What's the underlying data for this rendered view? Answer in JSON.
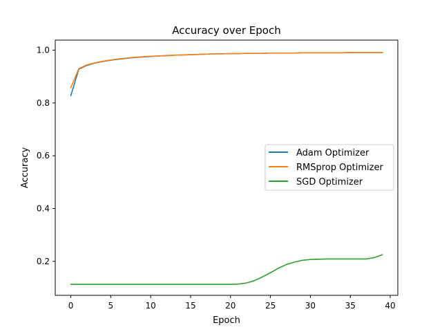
{
  "chart_data": {
    "type": "line",
    "title": "Accuracy over Epoch",
    "xlabel": "Epoch",
    "ylabel": "Accuracy",
    "xlim": [
      -1.95,
      40.95
    ],
    "ylim": [
      0.0712,
      1.0381
    ],
    "xticks": [
      0,
      5,
      10,
      15,
      20,
      25,
      30,
      35,
      40
    ],
    "yticks": [
      0.2,
      0.4,
      0.6,
      0.8,
      1.0
    ],
    "xtick_labels": [
      "0",
      "5",
      "10",
      "15",
      "20",
      "25",
      "30",
      "35",
      "40"
    ],
    "ytick_labels": [
      "0.2",
      "0.4",
      "0.6",
      "0.8",
      "1.0"
    ],
    "grid": false,
    "legend_position": "center-right",
    "x": [
      0,
      1,
      2,
      3,
      4,
      5,
      6,
      7,
      8,
      9,
      10,
      11,
      12,
      13,
      14,
      15,
      16,
      17,
      18,
      19,
      20,
      21,
      22,
      23,
      24,
      25,
      26,
      27,
      28,
      29,
      30,
      31,
      32,
      33,
      34,
      35,
      36,
      37,
      38,
      39
    ],
    "series": [
      {
        "name": "Adam Optimizer",
        "color": "#1f77b4",
        "values": [
          0.828,
          0.928,
          0.942,
          0.951,
          0.957,
          0.962,
          0.966,
          0.969,
          0.972,
          0.974,
          0.976,
          0.978,
          0.979,
          0.981,
          0.982,
          0.983,
          0.984,
          0.985,
          0.986,
          0.986,
          0.987,
          0.987,
          0.988,
          0.988,
          0.988,
          0.989,
          0.989,
          0.989,
          0.989,
          0.99,
          0.99,
          0.99,
          0.99,
          0.99,
          0.99,
          0.991,
          0.991,
          0.991,
          0.991,
          0.991
        ]
      },
      {
        "name": "RMSprop Optimizer",
        "color": "#ff7f0e",
        "values": [
          0.858,
          0.93,
          0.944,
          0.952,
          0.958,
          0.963,
          0.967,
          0.97,
          0.973,
          0.975,
          0.977,
          0.978,
          0.98,
          0.981,
          0.982,
          0.983,
          0.984,
          0.985,
          0.986,
          0.986,
          0.987,
          0.987,
          0.988,
          0.988,
          0.988,
          0.989,
          0.989,
          0.989,
          0.989,
          0.99,
          0.99,
          0.99,
          0.99,
          0.99,
          0.99,
          0.991,
          0.991,
          0.991,
          0.991,
          0.991
        ]
      },
      {
        "name": "SGD Optimizer",
        "color": "#2ca02c",
        "values": [
          0.113,
          0.113,
          0.113,
          0.113,
          0.113,
          0.113,
          0.113,
          0.113,
          0.113,
          0.113,
          0.113,
          0.113,
          0.113,
          0.113,
          0.113,
          0.113,
          0.113,
          0.113,
          0.113,
          0.113,
          0.113,
          0.114,
          0.118,
          0.127,
          0.141,
          0.157,
          0.174,
          0.188,
          0.197,
          0.204,
          0.207,
          0.208,
          0.209,
          0.209,
          0.209,
          0.209,
          0.209,
          0.209,
          0.214,
          0.225
        ]
      }
    ]
  }
}
